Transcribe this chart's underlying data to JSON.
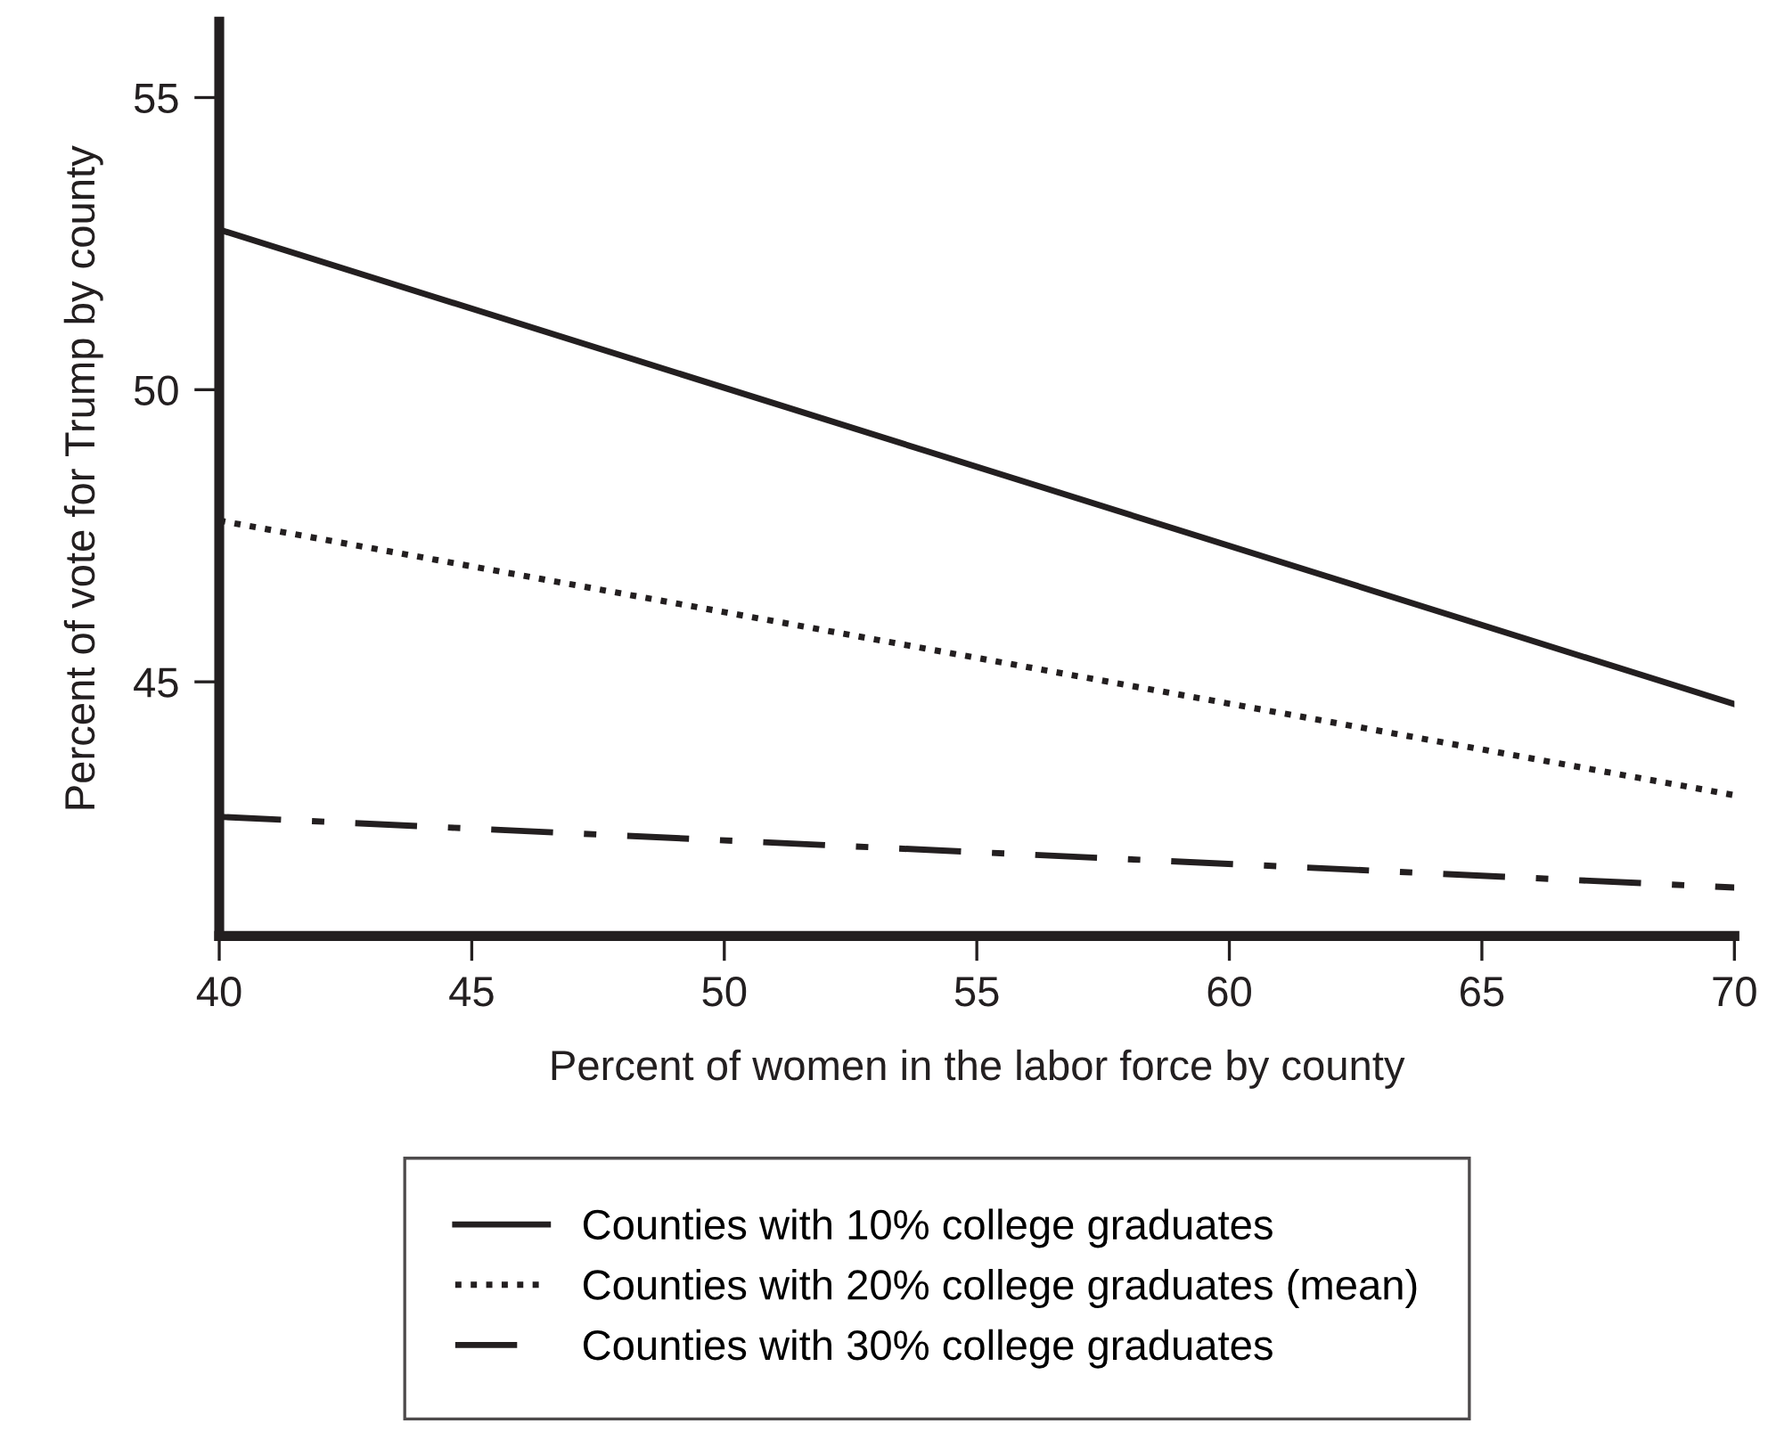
{
  "chart_data": {
    "type": "line",
    "xlabel": "Percent of women in the labor force by county",
    "ylabel": "Percent of vote for Trump by county",
    "x": [
      40,
      70
    ],
    "series": [
      {
        "name": "Counties with 10% college graduates",
        "color": "#231f20",
        "values": [
          52.74,
          44.62
        ],
        "line_style": "solid"
      },
      {
        "name": "Counties with 20% college graduates (mean)",
        "color": "#231f20",
        "values": [
          47.76,
          43.06
        ],
        "line_style": "dotted"
      },
      {
        "name": "Counties with 30% college graduates",
        "color": "#231f20",
        "values": [
          42.69,
          41.48
        ],
        "line_style": "dashdot"
      }
    ],
    "xlim": [
      40,
      70
    ],
    "xticks": [
      40,
      45,
      50,
      55,
      60,
      65,
      70
    ],
    "ylim": [
      40.65,
      56.3
    ],
    "yticks": [
      45,
      50,
      55
    ],
    "grid": false,
    "legend": "bottom",
    "marker": "none"
  }
}
